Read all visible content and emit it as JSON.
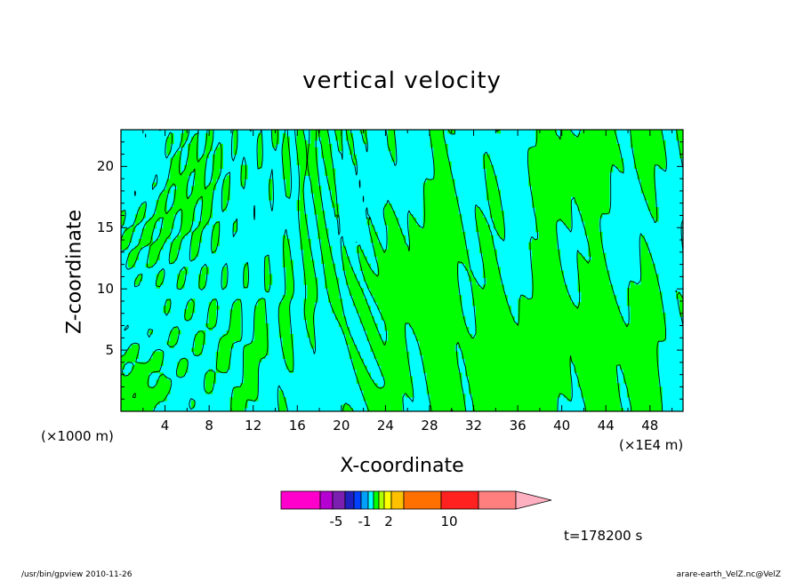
{
  "chart_data": {
    "type": "heatmap",
    "title": "vertical velocity",
    "xlabel": "X-coordinate",
    "ylabel": "Z-coordinate",
    "x_unit_label": "(×1E4 m)",
    "y_unit_label": "(×1000 m)",
    "x_ticks": [
      "4",
      "8",
      "12",
      "16",
      "20",
      "24",
      "28",
      "32",
      "36",
      "40",
      "44",
      "48"
    ],
    "y_ticks": [
      "5",
      "10",
      "15",
      "20"
    ],
    "xlim": [
      0,
      51
    ],
    "ylim": [
      0,
      23
    ],
    "field_colors": {
      "positive": "#00ff00",
      "negative": "#00ffff",
      "contour": "#000000"
    },
    "colorbar": {
      "colors": [
        "#ff00cc",
        "#b400d0",
        "#7a1fb0",
        "#2020c0",
        "#0040ff",
        "#00a0ff",
        "#00ffff",
        "#00ff00",
        "#b0ff00",
        "#ffff00",
        "#ffc000",
        "#ff7000",
        "#ff2020",
        "#ff7f7f",
        "#ffb0c0"
      ],
      "labels": [
        "-5",
        "-1",
        "2",
        "10"
      ]
    },
    "time_label": "t=178200 s"
  },
  "footer": {
    "left": "/usr/bin/gpview  2010-11-26",
    "right": "arare-earth_VelZ.nc@VelZ"
  }
}
